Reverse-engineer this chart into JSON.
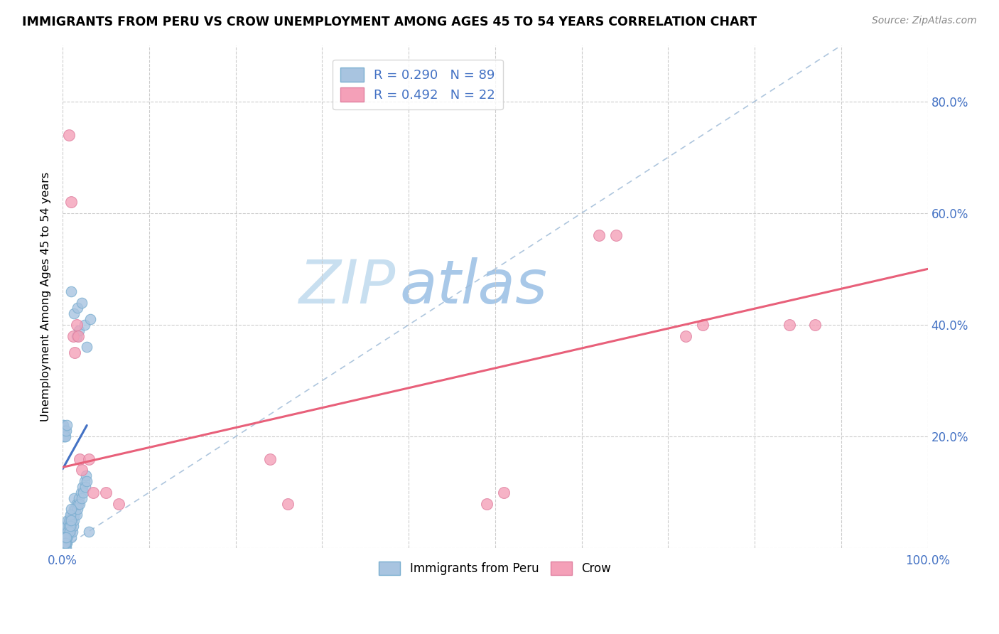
{
  "title": "IMMIGRANTS FROM PERU VS CROW UNEMPLOYMENT AMONG AGES 45 TO 54 YEARS CORRELATION CHART",
  "source": "Source: ZipAtlas.com",
  "ylabel": "Unemployment Among Ages 45 to 54 years",
  "xlim": [
    0,
    1.0
  ],
  "ylim": [
    0,
    0.9
  ],
  "xtick_positions": [
    0.0,
    0.1,
    0.2,
    0.3,
    0.4,
    0.5,
    0.6,
    0.7,
    0.8,
    0.9,
    1.0
  ],
  "xticklabels": [
    "0.0%",
    "",
    "",
    "",
    "",
    "",
    "",
    "",
    "",
    "",
    "100.0%"
  ],
  "ytick_positions": [
    0.0,
    0.2,
    0.4,
    0.6,
    0.8
  ],
  "yticklabels_right": [
    "",
    "20.0%",
    "40.0%",
    "60.0%",
    "80.0%"
  ],
  "legend_r1": "R = 0.290",
  "legend_n1": "N = 89",
  "legend_r2": "R = 0.492",
  "legend_n2": "N = 22",
  "color_blue": "#a8c4e0",
  "color_blue_edge": "#7aaed0",
  "color_pink": "#f4a0b8",
  "color_pink_edge": "#e080a0",
  "line_blue": "#4472c4",
  "line_pink": "#e8607a",
  "line_diag_color": "#a0bcd8",
  "watermark_zip": "#c8dff0",
  "watermark_atlas": "#a8c8e8",
  "peru_x": [
    0.002,
    0.003,
    0.004,
    0.004,
    0.004,
    0.005,
    0.005,
    0.006,
    0.006,
    0.007,
    0.007,
    0.008,
    0.009,
    0.01,
    0.01,
    0.01,
    0.011,
    0.011,
    0.012,
    0.012,
    0.013,
    0.013,
    0.013,
    0.014,
    0.015,
    0.016,
    0.016,
    0.017,
    0.018,
    0.019,
    0.02,
    0.021,
    0.022,
    0.023,
    0.024,
    0.025,
    0.026,
    0.027,
    0.028,
    0.03,
    0.001,
    0.001,
    0.002,
    0.002,
    0.003,
    0.003,
    0.003,
    0.004,
    0.004,
    0.005,
    0.005,
    0.006,
    0.006,
    0.007,
    0.008,
    0.008,
    0.009,
    0.009,
    0.01,
    0.01,
    0.0,
    0.0,
    0.0,
    0.001,
    0.001,
    0.001,
    0.002,
    0.002,
    0.003,
    0.004,
    0.0,
    0.0,
    0.001,
    0.001,
    0.001,
    0.002,
    0.002,
    0.003,
    0.004,
    0.005,
    0.01,
    0.013,
    0.016,
    0.017,
    0.019,
    0.022,
    0.025,
    0.028,
    0.032
  ],
  "peru_y": [
    0.0,
    0.01,
    0.0,
    0.02,
    0.04,
    0.01,
    0.03,
    0.02,
    0.04,
    0.03,
    0.05,
    0.04,
    0.03,
    0.02,
    0.04,
    0.06,
    0.03,
    0.05,
    0.04,
    0.06,
    0.05,
    0.07,
    0.09,
    0.06,
    0.07,
    0.06,
    0.08,
    0.07,
    0.08,
    0.09,
    0.08,
    0.1,
    0.09,
    0.11,
    0.1,
    0.12,
    0.11,
    0.13,
    0.12,
    0.03,
    0.0,
    0.01,
    0.0,
    0.01,
    0.0,
    0.02,
    0.03,
    0.01,
    0.03,
    0.02,
    0.04,
    0.03,
    0.05,
    0.04,
    0.03,
    0.05,
    0.04,
    0.06,
    0.05,
    0.07,
    0.0,
    0.01,
    0.02,
    0.0,
    0.01,
    0.02,
    0.01,
    0.02,
    0.01,
    0.02,
    0.21,
    0.22,
    0.2,
    0.21,
    0.22,
    0.2,
    0.21,
    0.2,
    0.21,
    0.22,
    0.46,
    0.42,
    0.38,
    0.43,
    0.39,
    0.44,
    0.4,
    0.36,
    0.41
  ],
  "crow_x": [
    0.007,
    0.01,
    0.012,
    0.014,
    0.016,
    0.018,
    0.02,
    0.022,
    0.03,
    0.035,
    0.05,
    0.065,
    0.24,
    0.26,
    0.49,
    0.51,
    0.62,
    0.64,
    0.72,
    0.74,
    0.84,
    0.87
  ],
  "crow_y": [
    0.74,
    0.62,
    0.38,
    0.35,
    0.4,
    0.38,
    0.16,
    0.14,
    0.16,
    0.1,
    0.1,
    0.08,
    0.16,
    0.08,
    0.08,
    0.1,
    0.56,
    0.56,
    0.38,
    0.4,
    0.4,
    0.4
  ],
  "peru_line_x": [
    0.0,
    0.028
  ],
  "peru_line_y": [
    0.142,
    0.22
  ],
  "crow_line_x": [
    0.0,
    1.0
  ],
  "crow_line_y": [
    0.145,
    0.5
  ],
  "diag_line_x": [
    0.0,
    0.9
  ],
  "diag_line_y": [
    0.0,
    0.9
  ]
}
